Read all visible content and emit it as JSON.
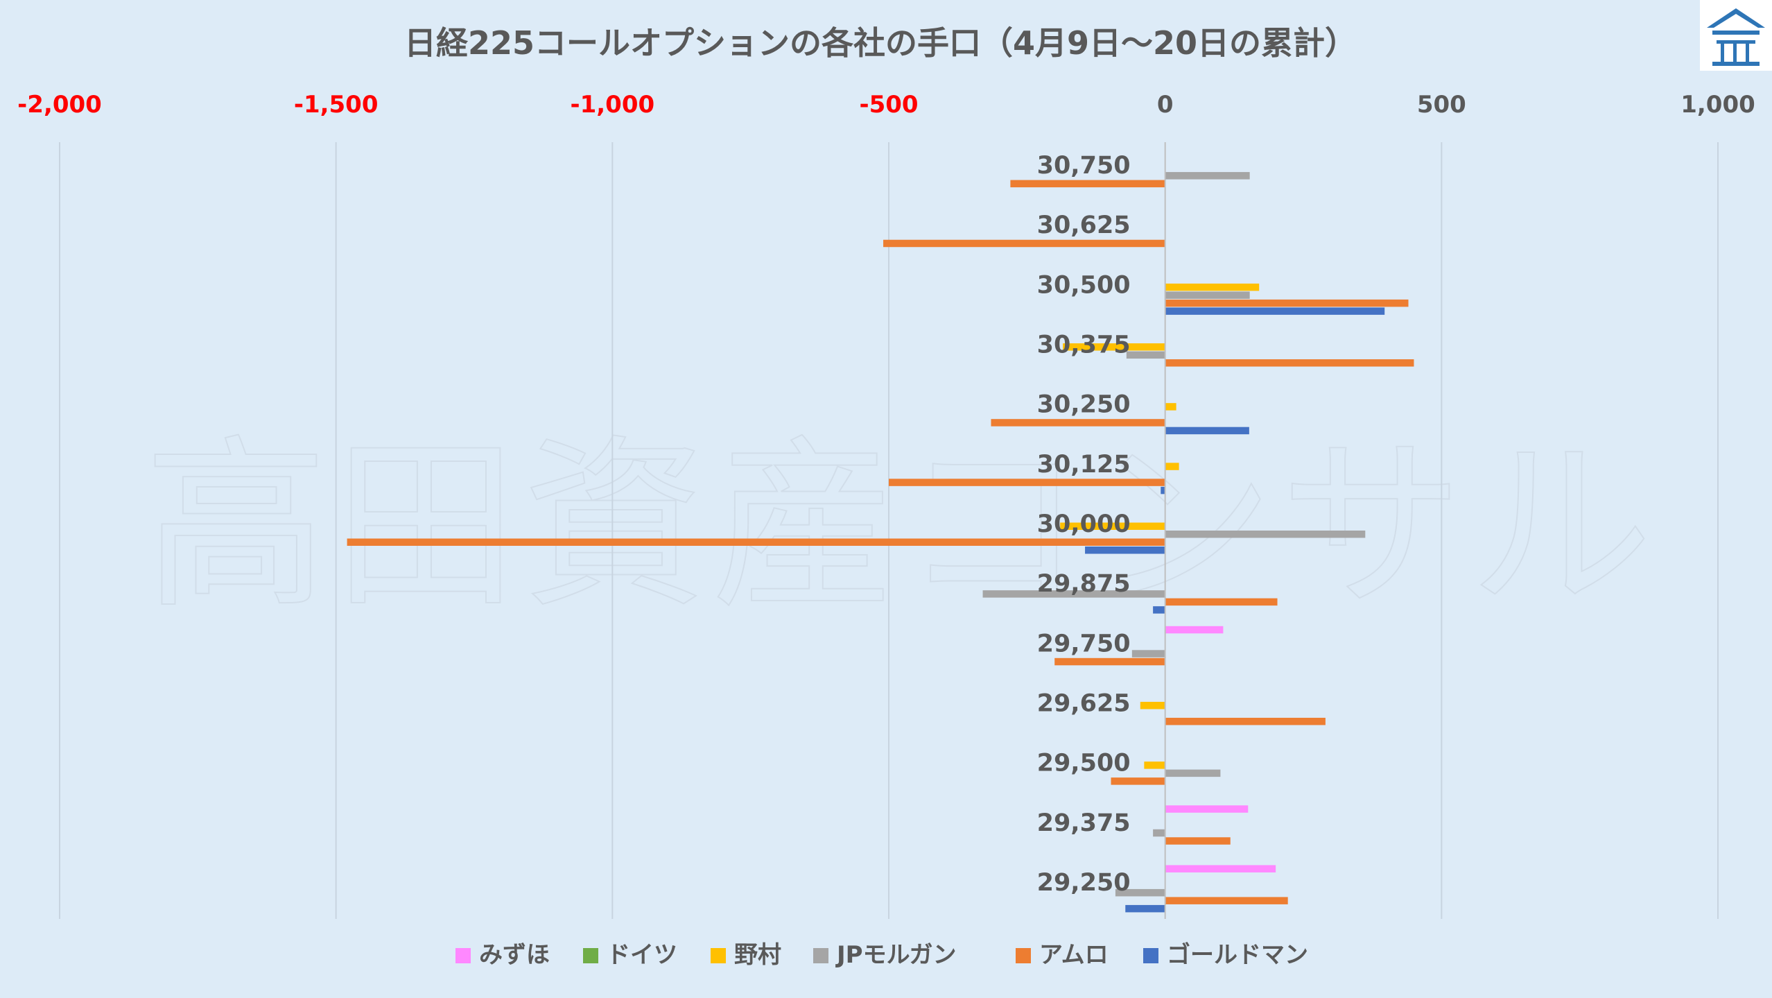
{
  "chart_data": {
    "type": "bar",
    "orientation": "horizontal",
    "title": "日経225コールオプションの各社の手口（4月9日～20日の累計）",
    "watermark": "高田資産コンサル",
    "x_ticks": [
      "-2,000",
      "-1,500",
      "-1,000",
      "-500",
      "0",
      "500",
      "1,000"
    ],
    "x_tick_values": [
      -2000,
      -1500,
      -1000,
      -500,
      0,
      500,
      1000
    ],
    "xlim": [
      -2000,
      1000
    ],
    "negative_tick_color": "#FF0000",
    "positive_tick_color": "#595959",
    "grid": true,
    "legend_position": "bottom",
    "categories": [
      "30,750",
      "30,625",
      "30,500",
      "30,375",
      "30,250",
      "30,125",
      "30,000",
      "29,875",
      "29,750",
      "29,625",
      "29,500",
      "29,375",
      "29,250"
    ],
    "series": [
      {
        "name": "みずほ",
        "color": "#FF88FF",
        "values": [
          0,
          0,
          0,
          0,
          0,
          0,
          0,
          0,
          105,
          0,
          0,
          150,
          200
        ]
      },
      {
        "name": "ドイツ",
        "color": "#70AD47",
        "values": [
          0,
          0,
          0,
          0,
          0,
          0,
          0,
          0,
          0,
          0,
          0,
          0,
          0
        ]
      },
      {
        "name": "野村",
        "color": "#FFC000",
        "values": [
          0,
          0,
          170,
          -185,
          20,
          25,
          -190,
          0,
          0,
          -45,
          -38,
          0,
          0
        ]
      },
      {
        "name": "JPモルガン",
        "color": "#A5A5A5",
        "values": [
          153,
          0,
          153,
          -70,
          0,
          0,
          362,
          -330,
          -60,
          0,
          100,
          -22,
          -90
        ]
      },
      {
        "name": "アムロ",
        "color": "#ED7D31",
        "values": [
          -280,
          -510,
          440,
          450,
          -315,
          -500,
          -1480,
          203,
          -200,
          290,
          -98,
          118,
          222
        ]
      },
      {
        "name": "ゴールドマン",
        "color": "#4472C4",
        "values": [
          0,
          0,
          397,
          0,
          152,
          -8,
          -145,
          -22,
          0,
          0,
          0,
          0,
          -72
        ]
      }
    ]
  },
  "logo": {
    "icon": "house-roof-logo-icon",
    "color": "#2E75B6"
  }
}
